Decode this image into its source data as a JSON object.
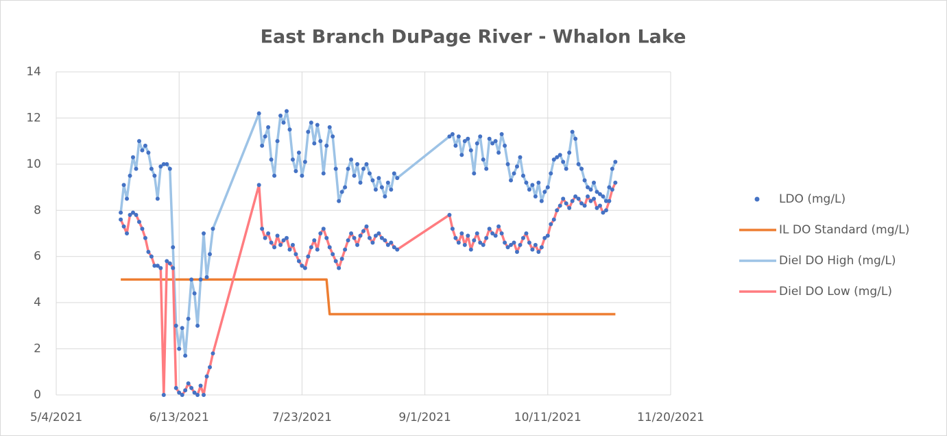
{
  "chart_data": {
    "type": "scatter-line",
    "title": "East Branch DuPage River - Whalon Lake",
    "xlim": [
      "2021-05-04",
      "2021-11-20"
    ],
    "xticks": [
      {
        "value": "2021-05-04",
        "label": "5/4/2021"
      },
      {
        "value": "2021-06-13",
        "label": "6/13/2021"
      },
      {
        "value": "2021-07-23",
        "label": "7/23/2021"
      },
      {
        "value": "2021-09-01",
        "label": "9/1/2021"
      },
      {
        "value": "2021-10-11",
        "label": "10/11/2021"
      },
      {
        "value": "2021-11-20",
        "label": "11/20/2021"
      }
    ],
    "ylim": [
      0,
      14
    ],
    "yticks": [
      0,
      2,
      4,
      6,
      8,
      10,
      12,
      14
    ],
    "grid": true,
    "legend": "right",
    "x": [
      "2021-05-25",
      "2021-05-26",
      "2021-05-27",
      "2021-05-28",
      "2021-05-29",
      "2021-05-30",
      "2021-05-31",
      "2021-06-01",
      "2021-06-02",
      "2021-06-03",
      "2021-06-04",
      "2021-06-05",
      "2021-06-06",
      "2021-06-07",
      "2021-06-08",
      "2021-06-09",
      "2021-06-10",
      "2021-06-11",
      "2021-06-12",
      "2021-06-13",
      "2021-06-14",
      "2021-06-15",
      "2021-06-16",
      "2021-06-17",
      "2021-06-18",
      "2021-06-19",
      "2021-06-20",
      "2021-06-21",
      "2021-06-22",
      "2021-06-23",
      "2021-06-24",
      "2021-07-09",
      "2021-07-10",
      "2021-07-11",
      "2021-07-12",
      "2021-07-13",
      "2021-07-14",
      "2021-07-15",
      "2021-07-16",
      "2021-07-17",
      "2021-07-18",
      "2021-07-19",
      "2021-07-20",
      "2021-07-21",
      "2021-07-22",
      "2021-07-23",
      "2021-07-24",
      "2021-07-25",
      "2021-07-26",
      "2021-07-27",
      "2021-07-28",
      "2021-07-29",
      "2021-07-30",
      "2021-07-31",
      "2021-08-01",
      "2021-08-02",
      "2021-08-03",
      "2021-08-04",
      "2021-08-05",
      "2021-08-06",
      "2021-08-07",
      "2021-08-08",
      "2021-08-09",
      "2021-08-10",
      "2021-08-11",
      "2021-08-12",
      "2021-08-13",
      "2021-08-14",
      "2021-08-15",
      "2021-08-16",
      "2021-08-17",
      "2021-08-18",
      "2021-08-19",
      "2021-08-20",
      "2021-08-21",
      "2021-08-22",
      "2021-08-23",
      "2021-09-09",
      "2021-09-10",
      "2021-09-11",
      "2021-09-12",
      "2021-09-13",
      "2021-09-14",
      "2021-09-15",
      "2021-09-16",
      "2021-09-17",
      "2021-09-18",
      "2021-09-19",
      "2021-09-20",
      "2021-09-21",
      "2021-09-22",
      "2021-09-23",
      "2021-09-24",
      "2021-09-25",
      "2021-09-26",
      "2021-09-27",
      "2021-09-28",
      "2021-09-29",
      "2021-09-30",
      "2021-10-01",
      "2021-10-02",
      "2021-10-03",
      "2021-10-04",
      "2021-10-05",
      "2021-10-06",
      "2021-10-07",
      "2021-10-08",
      "2021-10-09",
      "2021-10-10",
      "2021-10-11",
      "2021-10-12",
      "2021-10-13",
      "2021-10-14",
      "2021-10-15",
      "2021-10-16",
      "2021-10-17",
      "2021-10-18",
      "2021-10-19",
      "2021-10-20",
      "2021-10-21",
      "2021-10-22",
      "2021-10-23",
      "2021-10-24",
      "2021-10-25",
      "2021-10-26",
      "2021-10-27",
      "2021-10-28",
      "2021-10-29",
      "2021-10-30",
      "2021-10-31",
      "2021-11-01",
      "2021-11-02"
    ],
    "series": [
      {
        "name": "LDO (mg/L)",
        "type": "scatter",
        "color": "#4472c4",
        "values": [
          [
            7.9,
            7.6
          ],
          [
            9.1,
            7.3
          ],
          [
            8.5,
            7.0
          ],
          [
            9.5,
            7.8
          ],
          [
            10.3,
            7.9
          ],
          [
            9.8,
            7.8
          ],
          [
            11.0,
            7.5
          ],
          [
            10.6,
            7.2
          ],
          [
            10.8,
            6.8
          ],
          [
            10.5,
            6.2
          ],
          [
            9.8,
            6.0
          ],
          [
            9.5,
            5.6
          ],
          [
            8.5,
            5.6
          ],
          [
            9.9,
            5.5
          ],
          [
            10.0,
            0.0
          ],
          [
            10.0,
            5.8
          ],
          [
            9.8,
            5.7
          ],
          [
            6.4,
            5.5
          ],
          [
            3.0,
            0.3
          ],
          [
            2.0,
            0.1
          ],
          [
            2.9,
            0.0
          ],
          [
            1.7,
            0.2
          ],
          [
            3.3,
            0.5
          ],
          [
            5.0,
            0.3
          ],
          [
            4.4,
            0.1
          ],
          [
            3.0,
            0.0
          ],
          [
            5.0,
            0.4
          ],
          [
            7.0,
            0.0
          ],
          [
            5.1,
            0.8
          ],
          [
            6.1,
            1.2
          ],
          [
            7.2,
            1.8
          ],
          [
            12.2,
            9.1
          ],
          [
            10.8,
            7.2
          ],
          [
            11.2,
            6.8
          ],
          [
            11.6,
            7.0
          ],
          [
            10.2,
            6.6
          ],
          [
            9.5,
            6.4
          ],
          [
            11.0,
            6.9
          ],
          [
            12.1,
            6.5
          ],
          [
            11.8,
            6.7
          ],
          [
            12.3,
            6.8
          ],
          [
            11.5,
            6.3
          ],
          [
            10.2,
            6.5
          ],
          [
            9.7,
            6.1
          ],
          [
            10.5,
            5.8
          ],
          [
            9.5,
            5.6
          ],
          [
            10.1,
            5.5
          ],
          [
            11.4,
            6.0
          ],
          [
            11.8,
            6.4
          ],
          [
            10.9,
            6.7
          ],
          [
            11.7,
            6.3
          ],
          [
            11.0,
            7.0
          ],
          [
            9.6,
            7.2
          ],
          [
            10.8,
            6.8
          ],
          [
            11.6,
            6.4
          ],
          [
            11.2,
            6.1
          ],
          [
            9.8,
            5.8
          ],
          [
            8.4,
            5.5
          ],
          [
            8.8,
            5.9
          ],
          [
            9.0,
            6.3
          ],
          [
            9.8,
            6.7
          ],
          [
            10.2,
            7.0
          ],
          [
            9.5,
            6.8
          ],
          [
            10.0,
            6.5
          ],
          [
            9.2,
            6.9
          ],
          [
            9.8,
            7.1
          ],
          [
            10.0,
            7.3
          ],
          [
            9.6,
            6.8
          ],
          [
            9.3,
            6.6
          ],
          [
            8.9,
            6.9
          ],
          [
            9.4,
            7.0
          ],
          [
            9.0,
            6.8
          ],
          [
            8.6,
            6.7
          ],
          [
            9.2,
            6.5
          ],
          [
            8.9,
            6.6
          ],
          [
            9.6,
            6.4
          ],
          [
            9.4,
            6.3
          ],
          [
            11.2,
            7.8
          ],
          [
            11.3,
            7.2
          ],
          [
            10.8,
            6.8
          ],
          [
            11.2,
            6.6
          ],
          [
            10.4,
            7.0
          ],
          [
            11.0,
            6.5
          ],
          [
            11.1,
            6.9
          ],
          [
            10.6,
            6.3
          ],
          [
            9.6,
            6.7
          ],
          [
            10.9,
            7.0
          ],
          [
            11.2,
            6.6
          ],
          [
            10.2,
            6.5
          ],
          [
            9.8,
            6.8
          ],
          [
            11.1,
            7.2
          ],
          [
            10.9,
            7.0
          ],
          [
            11.0,
            6.9
          ],
          [
            10.5,
            7.3
          ],
          [
            11.3,
            7.0
          ],
          [
            10.8,
            6.6
          ],
          [
            10.0,
            6.4
          ],
          [
            9.3,
            6.5
          ],
          [
            9.6,
            6.6
          ],
          [
            9.9,
            6.2
          ],
          [
            10.3,
            6.5
          ],
          [
            9.5,
            6.8
          ],
          [
            9.2,
            7.0
          ],
          [
            8.9,
            6.6
          ],
          [
            9.1,
            6.3
          ],
          [
            8.6,
            6.5
          ],
          [
            9.2,
            6.2
          ],
          [
            8.4,
            6.4
          ],
          [
            8.8,
            6.8
          ],
          [
            9.0,
            6.9
          ],
          [
            9.6,
            7.4
          ],
          [
            10.2,
            7.6
          ],
          [
            10.3,
            8.0
          ],
          [
            10.4,
            8.2
          ],
          [
            10.1,
            8.5
          ],
          [
            9.8,
            8.3
          ],
          [
            10.5,
            8.1
          ],
          [
            11.4,
            8.4
          ],
          [
            11.1,
            8.6
          ],
          [
            10.0,
            8.5
          ],
          [
            9.8,
            8.3
          ],
          [
            9.3,
            8.2
          ],
          [
            9.0,
            8.6
          ],
          [
            8.9,
            8.4
          ],
          [
            9.2,
            8.5
          ],
          [
            8.8,
            8.1
          ],
          [
            8.7,
            8.2
          ],
          [
            8.6,
            7.9
          ],
          [
            8.4,
            8.0
          ],
          [
            9.0,
            8.4
          ],
          [
            9.8,
            8.9
          ],
          [
            10.1,
            9.2
          ]
        ]
      },
      {
        "name": "IL DO Standard (mg/L)",
        "type": "line",
        "color": "#ed7d31",
        "x": [
          "2021-05-25",
          "2021-07-31",
          "2021-08-01",
          "2021-11-02"
        ],
        "values": [
          5,
          5,
          3.5,
          3.5
        ]
      },
      {
        "name": "Diel DO High (mg/L)",
        "type": "line",
        "color": "#9dc3e6",
        "values": [
          7.9,
          9.1,
          8.5,
          9.5,
          10.3,
          9.8,
          11.0,
          10.6,
          10.8,
          10.5,
          9.8,
          9.5,
          8.5,
          9.9,
          10.0,
          10.0,
          9.8,
          6.4,
          3.0,
          2.0,
          2.9,
          1.7,
          3.3,
          5.0,
          4.4,
          3.0,
          5.0,
          7.0,
          5.1,
          6.1,
          7.2,
          12.2,
          10.8,
          11.2,
          11.6,
          10.2,
          9.5,
          11.0,
          12.1,
          11.8,
          12.3,
          11.5,
          10.2,
          9.7,
          10.5,
          9.5,
          10.1,
          11.4,
          11.8,
          10.9,
          11.7,
          11.0,
          9.6,
          10.8,
          11.6,
          11.2,
          9.8,
          8.4,
          8.8,
          9.0,
          9.8,
          10.2,
          9.5,
          10.0,
          9.2,
          9.8,
          10.0,
          9.6,
          9.3,
          8.9,
          9.4,
          9.0,
          8.6,
          9.2,
          8.9,
          9.6,
          9.4,
          11.2,
          11.3,
          10.8,
          11.2,
          10.4,
          11.0,
          11.1,
          10.6,
          9.6,
          10.9,
          11.2,
          10.2,
          9.8,
          11.1,
          10.9,
          11.0,
          10.5,
          11.3,
          10.8,
          10.0,
          9.3,
          9.6,
          9.9,
          10.3,
          9.5,
          9.2,
          8.9,
          9.1,
          8.6,
          9.2,
          8.4,
          8.8,
          9.0,
          9.6,
          10.2,
          10.3,
          10.4,
          10.1,
          9.8,
          10.5,
          11.4,
          11.1,
          10.0,
          9.8,
          9.3,
          9.0,
          8.9,
          9.2,
          8.8,
          8.7,
          8.6,
          8.4,
          9.0,
          9.8,
          10.1
        ]
      },
      {
        "name": "Diel DO Low (mg/L)",
        "type": "line",
        "color": "#ff7c80",
        "values": [
          7.6,
          7.3,
          7.0,
          7.8,
          7.9,
          7.8,
          7.5,
          7.2,
          6.8,
          6.2,
          6.0,
          5.6,
          5.6,
          5.5,
          0.0,
          5.8,
          5.7,
          5.5,
          0.3,
          0.1,
          0.0,
          0.2,
          0.5,
          0.3,
          0.1,
          0.0,
          0.4,
          0.0,
          0.8,
          1.2,
          1.8,
          9.1,
          7.2,
          6.8,
          7.0,
          6.6,
          6.4,
          6.9,
          6.5,
          6.7,
          6.8,
          6.3,
          6.5,
          6.1,
          5.8,
          5.6,
          5.5,
          6.0,
          6.4,
          6.7,
          6.3,
          7.0,
          7.2,
          6.8,
          6.4,
          6.1,
          5.8,
          5.5,
          5.9,
          6.3,
          6.7,
          7.0,
          6.8,
          6.5,
          6.9,
          7.1,
          7.3,
          6.8,
          6.6,
          6.9,
          7.0,
          6.8,
          6.7,
          6.5,
          6.6,
          6.4,
          6.3,
          7.8,
          7.2,
          6.8,
          6.6,
          7.0,
          6.5,
          6.9,
          6.3,
          6.7,
          7.0,
          6.6,
          6.5,
          6.8,
          7.2,
          7.0,
          6.9,
          7.3,
          7.0,
          6.6,
          6.4,
          6.5,
          6.6,
          6.2,
          6.5,
          6.8,
          7.0,
          6.6,
          6.3,
          6.5,
          6.2,
          6.4,
          6.8,
          6.9,
          7.4,
          7.6,
          8.0,
          8.2,
          8.5,
          8.3,
          8.1,
          8.4,
          8.6,
          8.5,
          8.3,
          8.2,
          8.6,
          8.4,
          8.5,
          8.1,
          8.2,
          7.9,
          8.0,
          8.4,
          8.9,
          9.2
        ]
      }
    ]
  }
}
